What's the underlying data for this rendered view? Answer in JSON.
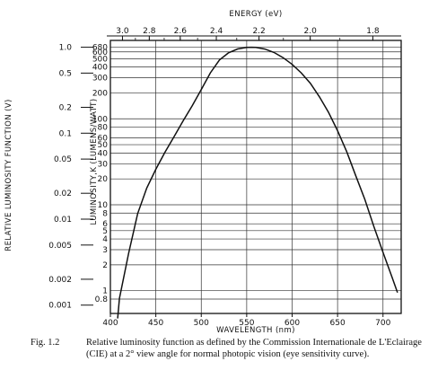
{
  "chart_data": {
    "type": "line",
    "xlabel": "WAVELENGTH (nm)",
    "top_xlabel": "ENERGY (eV)",
    "ylabel_left": "RELATIVE LUMINOSITY FUNCTION (V)",
    "ylabel_right": "LUMINOSITY,K (LUMENS/WATT)",
    "xlim": [
      400,
      720
    ],
    "ylim": [
      0.0008,
      1.2
    ],
    "y_scale": "log",
    "grid": true,
    "x_ticks": [
      "400",
      "450",
      "500",
      "550",
      "600",
      "650",
      "700"
    ],
    "top_ticks": [
      "3.0",
      "2.8",
      "2.6",
      "2.4",
      "2.2",
      "2.0",
      "1.8"
    ],
    "left_ticks": [
      "1.0",
      "0.5",
      "0.2",
      "0.1",
      "0.05",
      "0.02",
      "0.01",
      "0.005",
      "0.002",
      "0.001"
    ],
    "inner_ticks": [
      "680",
      "600",
      "500",
      "400",
      "300",
      "200",
      "100",
      "80",
      "60",
      "50",
      "40",
      "30",
      "20",
      "10",
      "8",
      "6",
      "5",
      "4",
      "3",
      "2",
      "1",
      "0.8"
    ],
    "series": [
      {
        "x": [
          408,
          410,
          420,
          430,
          440,
          450,
          460,
          470,
          480,
          490,
          500,
          510,
          520,
          530,
          540,
          550,
          555,
          560,
          570,
          580,
          590,
          600,
          610,
          620,
          630,
          640,
          650,
          660,
          670,
          680,
          690,
          700,
          710,
          716
        ],
        "values": [
          0.0007,
          0.0012,
          0.004,
          0.0116,
          0.023,
          0.038,
          0.06,
          0.091,
          0.139,
          0.208,
          0.323,
          0.503,
          0.71,
          0.862,
          0.954,
          0.995,
          1.0,
          0.995,
          0.952,
          0.87,
          0.757,
          0.631,
          0.503,
          0.381,
          0.265,
          0.175,
          0.107,
          0.061,
          0.032,
          0.017,
          0.0082,
          0.0041,
          0.0021,
          0.0014
        ]
      }
    ]
  },
  "caption": {
    "label": "Fig. 1.2",
    "text": "Relative luminosity function as defined by the Commission Internationale de L'Eclairage (CIE) at a 2° view angle for normal photopic vision (eye sensitivity curve)."
  }
}
